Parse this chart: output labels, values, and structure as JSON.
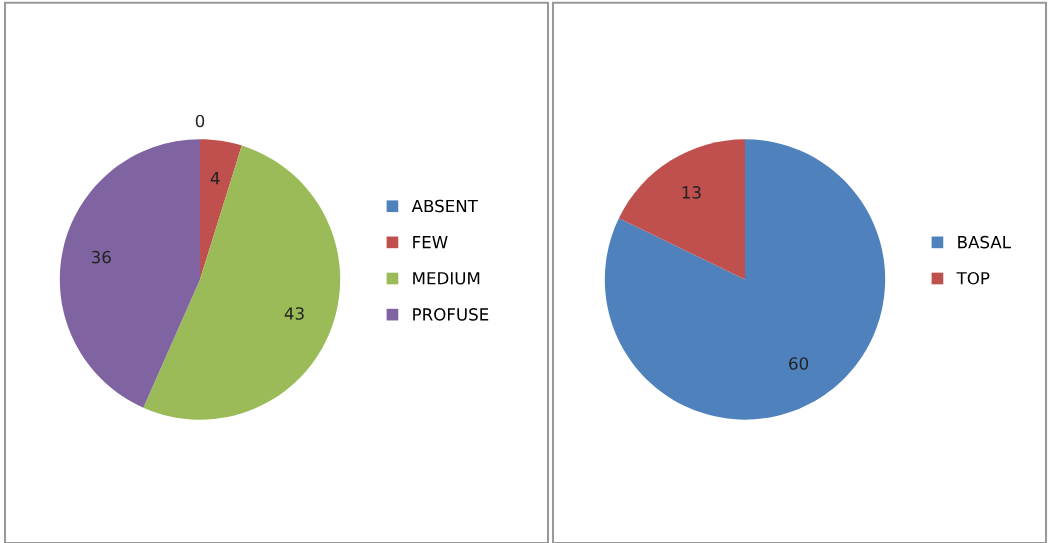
{
  "chart_data": [
    {
      "type": "pie",
      "categories": [
        "ABSENT",
        "FEW",
        "MEDIUM",
        "PROFUSE"
      ],
      "values": [
        0,
        4,
        43,
        36
      ],
      "value_labels": [
        "0",
        "4",
        "43",
        "36"
      ],
      "colors": [
        "#4f81bd",
        "#c0504d",
        "#9bbb59",
        "#8064a2"
      ],
      "legend": "right"
    },
    {
      "type": "pie",
      "categories": [
        "BASAL",
        "TOP"
      ],
      "values": [
        60,
        13
      ],
      "colors": [
        "#4f81bd",
        "#c0504d"
      ],
      "data_labels": true,
      "legend": "right"
    }
  ]
}
